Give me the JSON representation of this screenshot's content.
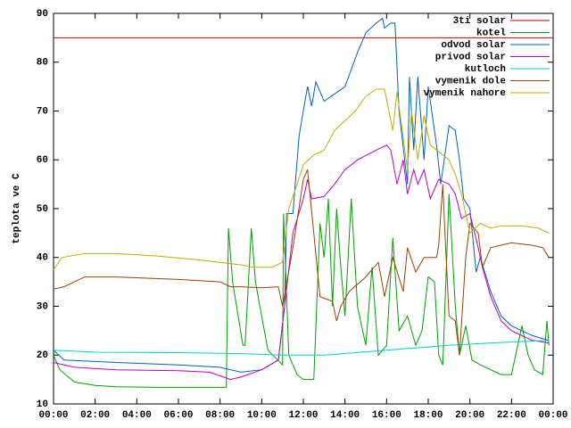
{
  "chart_data": {
    "type": "line",
    "y_label": "teplota ve C",
    "xlim": [
      0,
      24
    ],
    "ylim": [
      10,
      90
    ],
    "xticks": [
      {
        "value": 0,
        "label": "00:00"
      },
      {
        "value": 2,
        "label": "02:00"
      },
      {
        "value": 4,
        "label": "04:00"
      },
      {
        "value": 6,
        "label": "06:00"
      },
      {
        "value": 8,
        "label": "08:00"
      },
      {
        "value": 10,
        "label": "10:00"
      },
      {
        "value": 12,
        "label": "12:00"
      },
      {
        "value": 14,
        "label": "14:00"
      },
      {
        "value": 16,
        "label": "16:00"
      },
      {
        "value": 18,
        "label": "18:00"
      },
      {
        "value": 20,
        "label": "20:00"
      },
      {
        "value": 22,
        "label": "22:00"
      },
      {
        "value": 24,
        "label": "00:00"
      }
    ],
    "yticks": [
      10,
      20,
      30,
      40,
      50,
      60,
      70,
      80,
      90
    ],
    "legend": "top-right",
    "series": [
      {
        "name": "3ti solar",
        "color": "#c00000",
        "x": [
          0,
          24
        ],
        "values": [
          85,
          85
        ]
      },
      {
        "name": "kotel",
        "color": "#00a000",
        "x": [
          0,
          0.3,
          1,
          2,
          3,
          5,
          7,
          8.3,
          8.4,
          8.6,
          9.1,
          9.2,
          9.5,
          9.7,
          10.3,
          11,
          11.05,
          11.3,
          11.7,
          12,
          12.5,
          12.8,
          13,
          13.2,
          13.4,
          13.6,
          13.8,
          14,
          14.3,
          14.6,
          15,
          15.3,
          15.6,
          16,
          16.3,
          16.6,
          17,
          17.4,
          17.7,
          18,
          18.3,
          18.5,
          18.7,
          19,
          19.3,
          19.5,
          19.8,
          20.1,
          20.5,
          21,
          21.5,
          22,
          22.5,
          22.8,
          23.1,
          23.5,
          23.7,
          23.8
        ],
        "values": [
          20,
          17,
          14.5,
          13.8,
          13.5,
          13.4,
          13.4,
          13.4,
          46,
          35,
          22,
          22,
          46,
          35,
          21,
          18,
          49,
          20,
          16,
          15,
          15,
          47,
          40,
          52,
          30,
          50,
          38,
          28,
          52,
          30,
          22,
          38,
          20,
          22,
          44,
          25,
          28,
          22,
          25,
          36,
          35,
          20,
          18,
          53,
          30,
          20,
          26,
          19,
          18,
          17,
          16,
          16,
          26,
          20,
          17,
          16,
          27,
          22
        ]
      },
      {
        "name": "odvod solar",
        "color": "#0060c0",
        "x": [
          0,
          0.5,
          3,
          6,
          8,
          9,
          10,
          10.8,
          11.1,
          11.2,
          11.5,
          11.8,
          12.2,
          12.4,
          12.6,
          13,
          14,
          14.6,
          15,
          15.5,
          15.8,
          15.9,
          16.2,
          16.4,
          16.6,
          17,
          17.1,
          17.3,
          17.5,
          17.8,
          18,
          18.4,
          18.6,
          19,
          19.3,
          19.5,
          19.7,
          20,
          20.3,
          20.5,
          21,
          21.5,
          22,
          23,
          23.8
        ],
        "values": [
          21,
          19,
          18.5,
          18,
          17.5,
          16.5,
          17,
          19,
          30,
          49,
          49,
          65,
          75,
          71,
          76,
          72,
          75,
          82,
          86,
          88,
          89,
          87,
          88,
          88,
          70,
          55,
          77,
          62,
          77,
          60,
          75,
          63,
          55,
          67,
          66,
          60,
          52,
          50,
          37,
          40,
          33,
          28,
          26,
          24,
          23
        ]
      },
      {
        "name": "privod solar",
        "color": "#c000c0",
        "x": [
          0,
          1,
          3,
          6,
          7.5,
          8.5,
          9,
          10,
          10.8,
          11.1,
          11.5,
          12,
          12.2,
          12.4,
          13,
          13.5,
          14,
          14.6,
          15.5,
          16,
          16.2,
          16.5,
          16.8,
          17,
          17.3,
          17.5,
          17.8,
          18.1,
          18.5,
          19,
          19.3,
          19.6,
          20,
          20.4,
          20.6,
          21,
          21.5,
          22,
          23,
          23.8
        ],
        "values": [
          18.5,
          17.5,
          17,
          16.8,
          16.5,
          15,
          15.5,
          17,
          19,
          30,
          45,
          52,
          56,
          52,
          52.5,
          55,
          58,
          60,
          62,
          63,
          62,
          55,
          60,
          53,
          58,
          55,
          58,
          52,
          56,
          55,
          53,
          48,
          49,
          42,
          38,
          32,
          27,
          25,
          23,
          22.5
        ]
      },
      {
        "name": "kutloch",
        "color": "#00d0d0",
        "x": [
          0,
          2,
          6,
          9,
          11,
          13,
          16,
          19,
          21,
          23.8
        ],
        "values": [
          21,
          20.6,
          20.5,
          20.3,
          20,
          20,
          21,
          22,
          22.5,
          23
        ]
      },
      {
        "name": "vymenik dole",
        "color": "#a04000",
        "x": [
          0,
          0.5,
          1.5,
          3,
          6,
          8,
          8.5,
          9,
          10,
          10.8,
          11,
          11.5,
          12,
          12.2,
          12.5,
          12.8,
          13.4,
          13.6,
          13.8,
          14.2,
          15,
          15.6,
          15.9,
          16.3,
          16.8,
          17,
          17.4,
          17.8,
          18.4,
          18.5,
          18.7,
          18.8,
          19,
          19.3,
          19.5,
          19.8,
          20,
          20.4,
          20.6,
          21,
          22,
          23,
          23.5,
          23.8
        ],
        "values": [
          33.5,
          34,
          36,
          36,
          35.5,
          35,
          34,
          34,
          33.8,
          34,
          30,
          42,
          56,
          58,
          45,
          32,
          31,
          27,
          30,
          33,
          36,
          39,
          32,
          40,
          33,
          42,
          37,
          40,
          40,
          42.5,
          55,
          45,
          28,
          27,
          20,
          40,
          47,
          45,
          38,
          42,
          43,
          42.5,
          42,
          40
        ]
      },
      {
        "name": "vymenik nahore",
        "color": "#c0b000",
        "x": [
          0,
          0.4,
          1.5,
          3,
          5,
          7,
          8,
          9,
          9.6,
          10.5,
          11,
          11.3,
          11.7,
          12,
          12.5,
          13,
          13.5,
          14,
          14.5,
          15,
          15.5,
          15.9,
          16.3,
          16.5,
          17,
          17.2,
          17.5,
          17.8,
          18.1,
          19,
          19.3,
          19.6,
          20,
          20.5,
          21,
          21.5,
          22.5,
          23.3,
          23.8
        ],
        "values": [
          37.5,
          40,
          40.8,
          40.8,
          40.3,
          39.5,
          39,
          38.5,
          38,
          38,
          39,
          50,
          55,
          59,
          61,
          62,
          66,
          68,
          70,
          73,
          74.5,
          74.5,
          66,
          74,
          58,
          70,
          60,
          69,
          63,
          60,
          57,
          53,
          45,
          47,
          46,
          46.5,
          46.5,
          46,
          45
        ]
      }
    ]
  }
}
